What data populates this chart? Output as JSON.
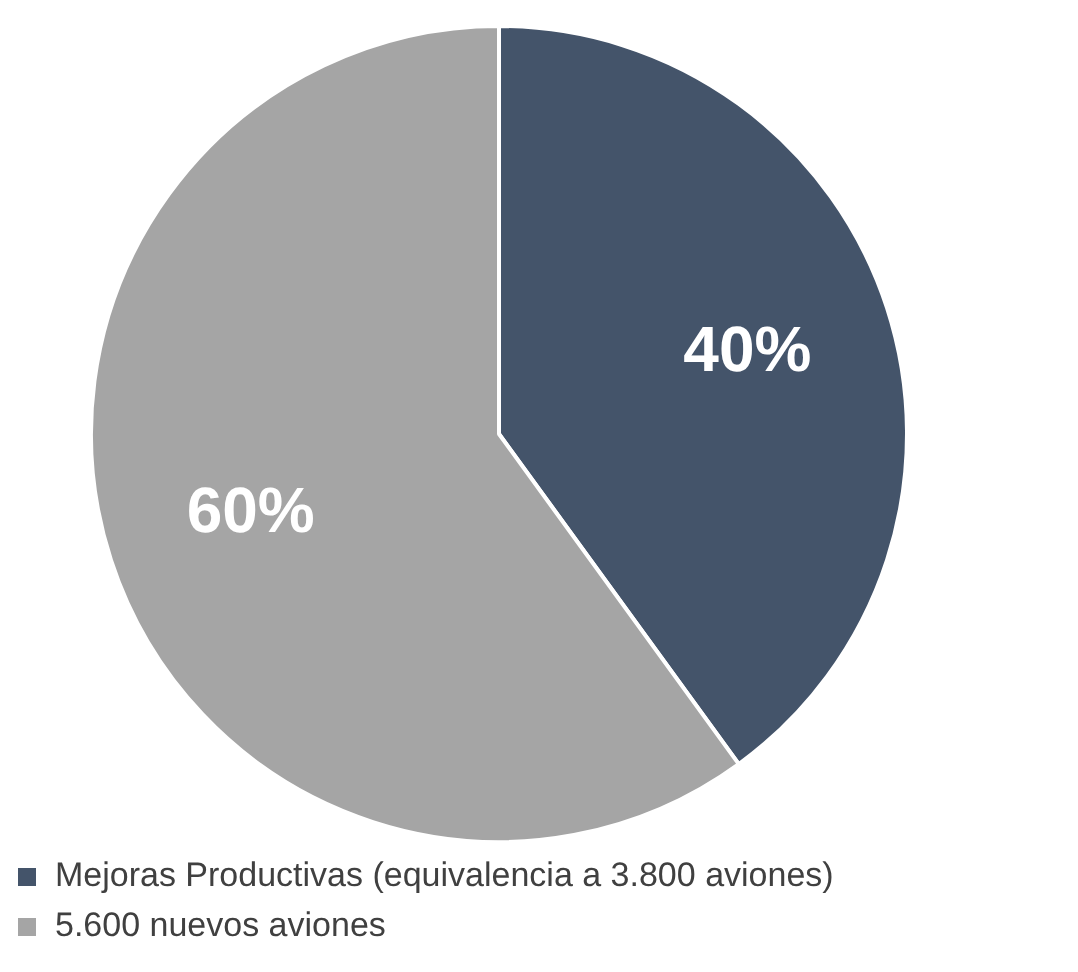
{
  "chart_data": {
    "type": "pie",
    "categories": [
      "Mejoras Productivas (equivalencia a 3.800 aviones)",
      "5.600 nuevos aviones"
    ],
    "values": [
      40,
      60
    ],
    "value_labels": [
      "40%",
      "60%"
    ],
    "colors": [
      "#44546a",
      "#a5a5a5"
    ],
    "legend": "bottom"
  }
}
